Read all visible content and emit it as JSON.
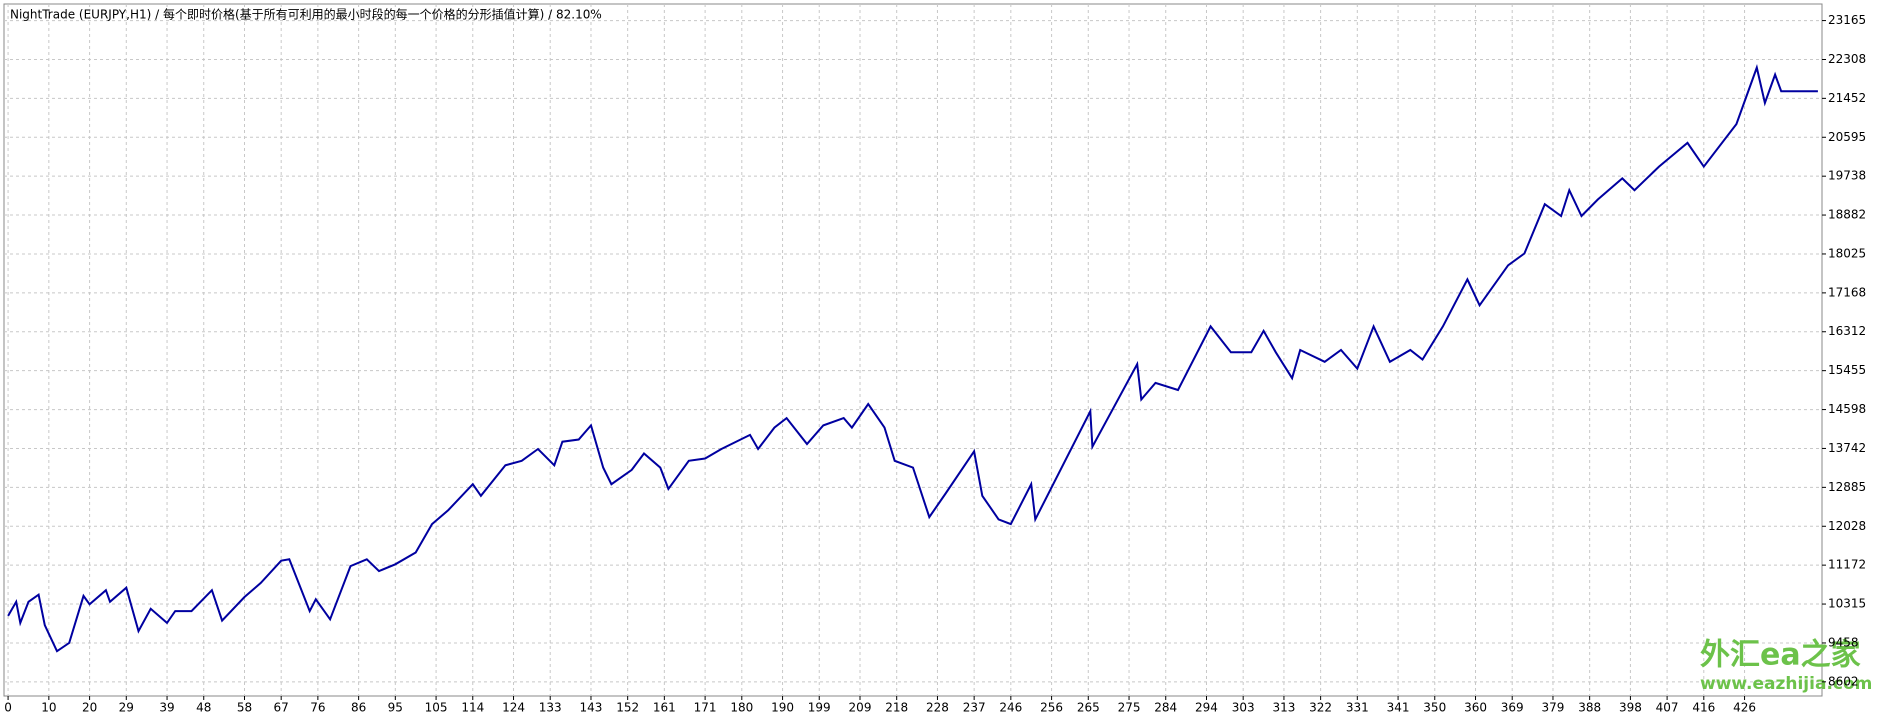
{
  "chart_data": {
    "type": "line",
    "title": "NightTrade (EURJPY,H1) / 每个即时价格(基于所有可利用的最小时段的每一个价格的分形插值计算) / 82.10%",
    "color": "#0000a0",
    "grid": true,
    "x": [
      0,
      2,
      3,
      5,
      7.5,
      9,
      12,
      15,
      18.5,
      20,
      24,
      25,
      29,
      32,
      35,
      39,
      41,
      45,
      50,
      52.5,
      58,
      62,
      67,
      69,
      74,
      75.5,
      79,
      84,
      88,
      91,
      95,
      100,
      104,
      108,
      114,
      116,
      122,
      126,
      130,
      134,
      136,
      140,
      143,
      146,
      148,
      153,
      156,
      160,
      162,
      167,
      171,
      175,
      182,
      184,
      188,
      191,
      196,
      200,
      205,
      207,
      211,
      215,
      217.5,
      222,
      226,
      230,
      237,
      239,
      243,
      246,
      251,
      252,
      265.5,
      266,
      277,
      278,
      281.5,
      287,
      295,
      300,
      305,
      308,
      311,
      315,
      317,
      323,
      327,
      331,
      335,
      339,
      344,
      347,
      352,
      358,
      361,
      368,
      372,
      377,
      381,
      383,
      386,
      390,
      396,
      399,
      405,
      412,
      416,
      424,
      429,
      431,
      433.5,
      435,
      444
    ],
    "values": [
      10054,
      10365,
      9900,
      10365,
      10520,
      9850,
      9276,
      9460,
      10495,
      10310,
      10620,
      10365,
      10675,
      9720,
      10210,
      9900,
      10160,
      10160,
      10620,
      9950,
      10470,
      10780,
      11270,
      11300,
      10160,
      10420,
      9980,
      11150,
      11300,
      11040,
      11190,
      11450,
      12075,
      12385,
      12955,
      12700,
      13370,
      13470,
      13730,
      13370,
      13890,
      13940,
      14250,
      13320,
      12955,
      13270,
      13630,
      13320,
      12850,
      13470,
      13520,
      13730,
      14040,
      13730,
      14200,
      14410,
      13840,
      14250,
      14410,
      14200,
      14720,
      14200,
      13470,
      13320,
      12230,
      12750,
      13680,
      12700,
      12180,
      12075,
      12955,
      12180,
      14560,
      13780,
      15600,
      14820,
      15185,
      15030,
      16430,
      15860,
      15860,
      16330,
      15860,
      15290,
      15910,
      15650,
      15910,
      15500,
      16430,
      15650,
      15910,
      15700,
      16430,
      17465,
      16895,
      17775,
      18035,
      19120,
      18860,
      19430,
      18860,
      19225,
      19690,
      19430,
      19950,
      20470,
      19950,
      20885,
      22130,
      21350,
      21975,
      21610,
      21610
    ],
    "xlim": [
      -1,
      445
    ],
    "ylim": [
      8290,
      23530
    ],
    "xticks": [
      0,
      10,
      20,
      29,
      39,
      48,
      58,
      67,
      76,
      86,
      95,
      105,
      114,
      124,
      133,
      143,
      152,
      161,
      171,
      180,
      190,
      199,
      209,
      218,
      228,
      237,
      246,
      256,
      265,
      275,
      284,
      294,
      303,
      313,
      322,
      331,
      341,
      350,
      360,
      369,
      379,
      388,
      398,
      407,
      416,
      426
    ],
    "yticks": [
      8602,
      9458,
      10315,
      11172,
      12028,
      12885,
      13742,
      14598,
      15455,
      16312,
      17168,
      18025,
      18882,
      19738,
      20595,
      21452,
      22308,
      23165
    ],
    "watermark": [
      "外汇ea之家",
      "www.eazhijia.com"
    ]
  }
}
